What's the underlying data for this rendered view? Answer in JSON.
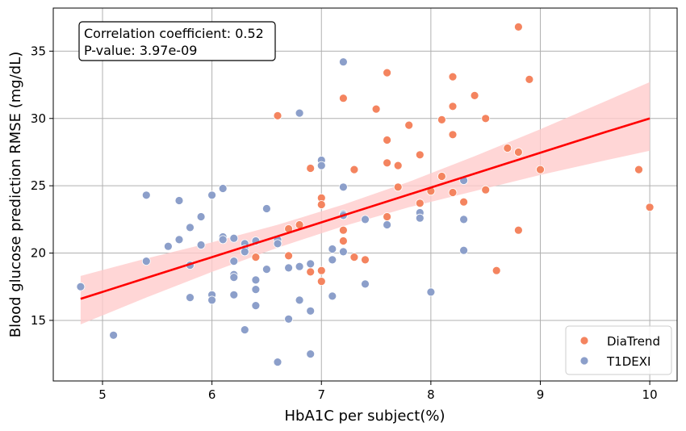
{
  "chart_data": {
    "type": "scatter",
    "xlabel": "HbA1C per subject(%)",
    "ylabel": "Blood glucose prediction RMSE (mg/dL)",
    "xlim": [
      4.55,
      10.25
    ],
    "ylim": [
      10.5,
      38.2
    ],
    "x_ticks": [
      5,
      6,
      7,
      8,
      9,
      10
    ],
    "y_ticks": [
      15,
      20,
      25,
      30,
      35
    ],
    "grid": true,
    "legend_position": "lower-right",
    "annotation_lines": [
      "Correlation coefficient: 0.52",
      "P-value: 3.97e-09"
    ],
    "series": [
      {
        "name": "DiaTrend",
        "color": "#f4845f",
        "points": [
          [
            6.6,
            30.2
          ],
          [
            6.7,
            21.8
          ],
          [
            6.7,
            19.8
          ],
          [
            6.8,
            22.1
          ],
          [
            6.9,
            26.3
          ],
          [
            6.9,
            18.6
          ],
          [
            7.0,
            24.1
          ],
          [
            7.0,
            23.6
          ],
          [
            7.0,
            18.7
          ],
          [
            7.0,
            17.9
          ],
          [
            7.2,
            31.5
          ],
          [
            7.2,
            21.7
          ],
          [
            7.2,
            20.9
          ],
          [
            7.3,
            26.2
          ],
          [
            7.3,
            19.7
          ],
          [
            7.4,
            19.5
          ],
          [
            7.5,
            30.7
          ],
          [
            7.6,
            33.4
          ],
          [
            7.6,
            28.4
          ],
          [
            7.6,
            26.7
          ],
          [
            7.6,
            22.7
          ],
          [
            7.7,
            26.5
          ],
          [
            7.7,
            24.9
          ],
          [
            7.8,
            29.5
          ],
          [
            7.9,
            27.3
          ],
          [
            7.9,
            23.7
          ],
          [
            8.0,
            24.6
          ],
          [
            8.1,
            29.9
          ],
          [
            8.1,
            25.7
          ],
          [
            8.2,
            33.1
          ],
          [
            8.2,
            30.9
          ],
          [
            8.2,
            28.8
          ],
          [
            8.2,
            24.5
          ],
          [
            8.3,
            23.8
          ],
          [
            8.4,
            31.7
          ],
          [
            8.5,
            30.0
          ],
          [
            8.5,
            24.7
          ],
          [
            8.6,
            18.7
          ],
          [
            8.7,
            27.8
          ],
          [
            8.8,
            36.8
          ],
          [
            8.8,
            27.5
          ],
          [
            8.8,
            21.7
          ],
          [
            8.9,
            32.9
          ],
          [
            9.0,
            26.2
          ],
          [
            9.9,
            26.2
          ],
          [
            10.0,
            23.4
          ],
          [
            6.4,
            19.7
          ]
        ]
      },
      {
        "name": "T1DEXI",
        "color": "#8c9fca",
        "points": [
          [
            4.8,
            17.5
          ],
          [
            5.1,
            13.9
          ],
          [
            5.4,
            24.3
          ],
          [
            5.4,
            19.4
          ],
          [
            5.6,
            20.5
          ],
          [
            5.7,
            23.9
          ],
          [
            5.7,
            21.0
          ],
          [
            5.8,
            21.9
          ],
          [
            5.8,
            19.1
          ],
          [
            5.8,
            16.7
          ],
          [
            5.9,
            22.7
          ],
          [
            5.9,
            20.6
          ],
          [
            6.0,
            24.3
          ],
          [
            6.0,
            16.9
          ],
          [
            6.0,
            16.5
          ],
          [
            6.1,
            24.8
          ],
          [
            6.1,
            21.2
          ],
          [
            6.1,
            21.0
          ],
          [
            6.2,
            21.1
          ],
          [
            6.2,
            19.4
          ],
          [
            6.2,
            18.4
          ],
          [
            6.2,
            18.2
          ],
          [
            6.2,
            16.9
          ],
          [
            6.3,
            20.7
          ],
          [
            6.3,
            20.3
          ],
          [
            6.3,
            20.1
          ],
          [
            6.3,
            14.3
          ],
          [
            6.4,
            20.9
          ],
          [
            6.4,
            18.0
          ],
          [
            6.4,
            17.3
          ],
          [
            6.4,
            16.1
          ],
          [
            6.5,
            23.3
          ],
          [
            6.5,
            18.8
          ],
          [
            6.6,
            21.0
          ],
          [
            6.6,
            20.7
          ],
          [
            6.6,
            11.9
          ],
          [
            6.7,
            18.9
          ],
          [
            6.7,
            15.1
          ],
          [
            6.8,
            30.4
          ],
          [
            6.8,
            19.0
          ],
          [
            6.8,
            16.5
          ],
          [
            6.9,
            19.2
          ],
          [
            6.9,
            15.7
          ],
          [
            6.9,
            12.5
          ],
          [
            7.0,
            26.9
          ],
          [
            7.0,
            26.5
          ],
          [
            7.1,
            20.3
          ],
          [
            7.1,
            19.5
          ],
          [
            7.1,
            16.8
          ],
          [
            7.2,
            34.2
          ],
          [
            7.2,
            24.9
          ],
          [
            7.2,
            22.9
          ],
          [
            7.2,
            22.8
          ],
          [
            7.2,
            20.1
          ],
          [
            7.4,
            22.5
          ],
          [
            7.4,
            17.7
          ],
          [
            7.6,
            22.1
          ],
          [
            7.9,
            23.0
          ],
          [
            7.9,
            22.6
          ],
          [
            8.0,
            17.1
          ],
          [
            8.3,
            25.4
          ],
          [
            8.3,
            22.5
          ],
          [
            8.3,
            20.2
          ]
        ]
      }
    ],
    "regression": {
      "color": "#ff0000",
      "band_color": "#ffcccc",
      "x": [
        4.8,
        5.4,
        6.0,
        6.6,
        7.2,
        7.8,
        8.4,
        9.0,
        9.6,
        10.0
      ],
      "y": [
        16.6,
        18.15,
        19.7,
        21.25,
        22.8,
        24.35,
        25.9,
        27.45,
        29.0,
        30.0
      ],
      "lower": [
        14.7,
        16.7,
        18.6,
        20.4,
        22.0,
        23.4,
        24.6,
        25.8,
        26.9,
        27.6
      ],
      "upper": [
        18.3,
        19.6,
        20.8,
        22.1,
        23.6,
        25.3,
        27.2,
        29.2,
        31.3,
        32.7
      ]
    }
  }
}
